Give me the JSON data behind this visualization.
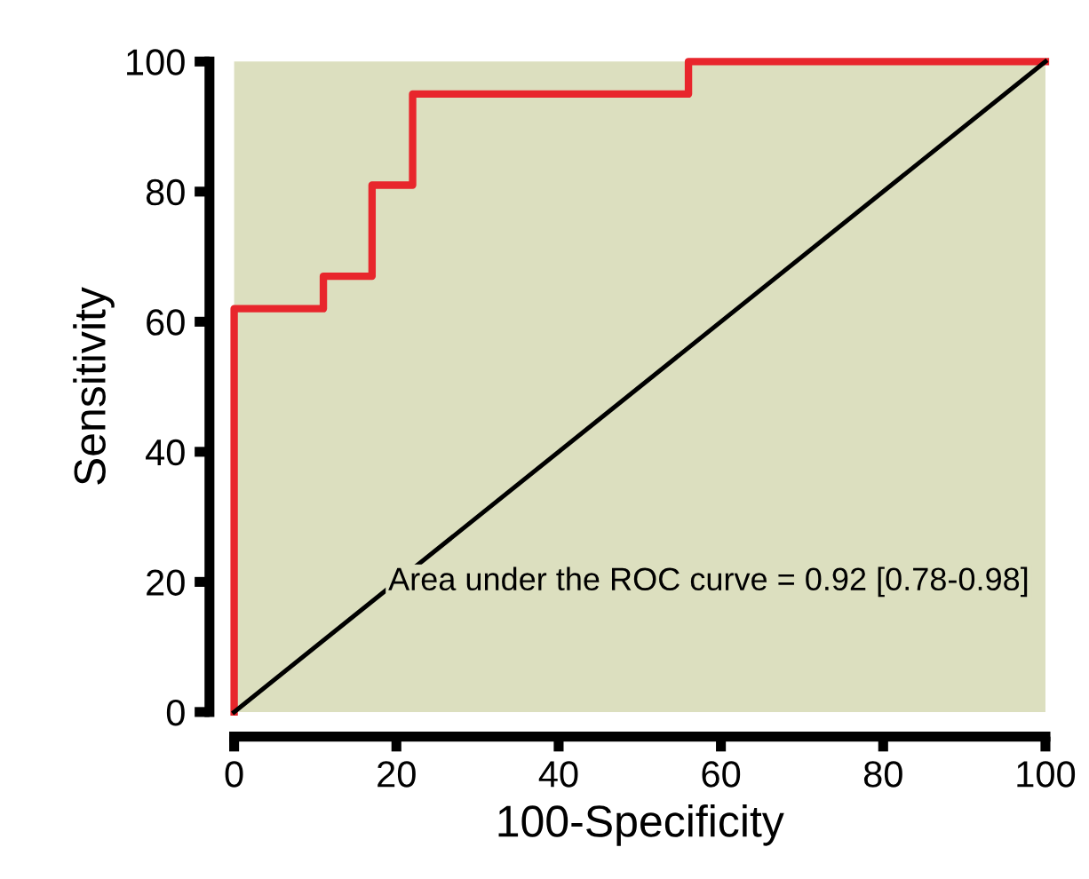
{
  "chart_data": {
    "type": "line",
    "xlabel": "100-Specificity",
    "ylabel": "Sensitivity",
    "series": [
      {
        "type": "step",
        "color": "#e8262c",
        "x": [
          0,
          0,
          11,
          11,
          17,
          17,
          22,
          22,
          56,
          56,
          100
        ],
        "values": [
          0,
          62,
          62,
          67,
          67,
          81,
          81,
          95,
          95,
          100,
          100
        ]
      },
      {
        "color": "#000000",
        "x": [
          0,
          100
        ],
        "values": [
          0,
          100
        ]
      }
    ],
    "xlim": [
      0,
      100
    ],
    "ylim": [
      0,
      100
    ],
    "xticks": [
      0,
      20,
      40,
      60,
      80,
      100
    ],
    "yticks": [
      0,
      20,
      40,
      60,
      80,
      100
    ],
    "grid": false,
    "legend": false,
    "annotations": [
      "Area under the ROC curve = 0.92 [0.78-0.98]"
    ]
  }
}
